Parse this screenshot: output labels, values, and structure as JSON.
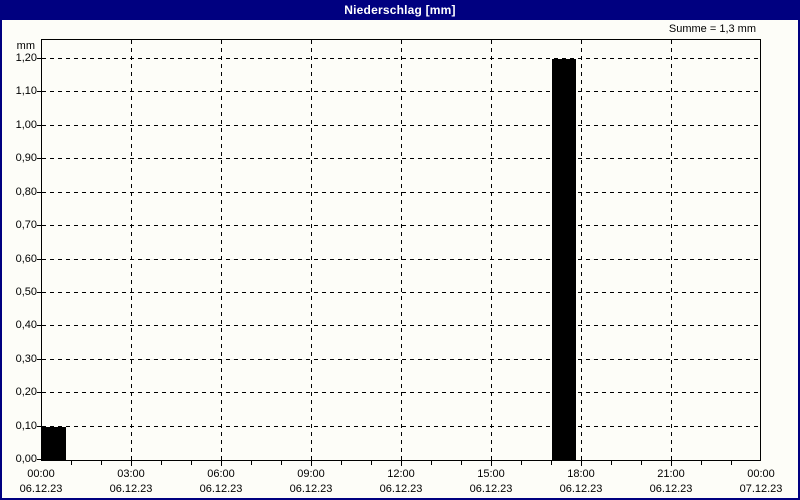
{
  "window": {
    "title_bar": "Niederschlag [mm]"
  },
  "header": {
    "sum_label": "Summe = 1,3 mm"
  },
  "chart_data": {
    "type": "bar",
    "title": "Niederschlag [mm]",
    "subtitle": "",
    "xlabel": "",
    "ylabel": "mm",
    "ylim": [
      0,
      1.257
    ],
    "y_tick_step": 0.1,
    "y_ticks": [
      {
        "value": 0.0,
        "label": "0,00"
      },
      {
        "value": 0.1,
        "label": "0,10"
      },
      {
        "value": 0.2,
        "label": "0,20"
      },
      {
        "value": 0.3,
        "label": "0,30"
      },
      {
        "value": 0.4,
        "label": "0,40"
      },
      {
        "value": 0.5,
        "label": "0,50"
      },
      {
        "value": 0.6,
        "label": "0,60"
      },
      {
        "value": 0.7,
        "label": "0,70"
      },
      {
        "value": 0.8,
        "label": "0,80"
      },
      {
        "value": 0.9,
        "label": "0,90"
      },
      {
        "value": 1.0,
        "label": "1,00"
      },
      {
        "value": 1.1,
        "label": "1,10"
      },
      {
        "value": 1.2,
        "label": "1,20"
      }
    ],
    "x_hours_total": 24,
    "x_minor_tick_every_hours": 1,
    "x_grid_every_hours": 3,
    "x_ticks_major": [
      {
        "hour": 0,
        "time": "00:00",
        "date": "06.12.23"
      },
      {
        "hour": 3,
        "time": "03:00",
        "date": "06.12.23"
      },
      {
        "hour": 6,
        "time": "06:00",
        "date": "06.12.23"
      },
      {
        "hour": 9,
        "time": "09:00",
        "date": "06.12.23"
      },
      {
        "hour": 12,
        "time": "12:00",
        "date": "06.12.23"
      },
      {
        "hour": 15,
        "time": "15:00",
        "date": "06.12.23"
      },
      {
        "hour": 18,
        "time": "18:00",
        "date": "06.12.23"
      },
      {
        "hour": 21,
        "time": "21:00",
        "date": "06.12.23"
      },
      {
        "hour": 24,
        "time": "00:00",
        "date": "07.12.23"
      }
    ],
    "bars": [
      {
        "start_hour": 0,
        "value": 0.1
      },
      {
        "start_hour": 17,
        "value": 1.2
      }
    ],
    "bar_width_hours": 0.8,
    "sum_mm": "1,3",
    "grid": true,
    "legend": null,
    "colors": {
      "title_bg": "#000080",
      "title_fg": "#ffffff",
      "frame_border": "#000080",
      "plot_border": "#000000",
      "grid": "#000000",
      "bar": "#000000",
      "text": "#000000",
      "background": "#fdfdf8"
    }
  }
}
